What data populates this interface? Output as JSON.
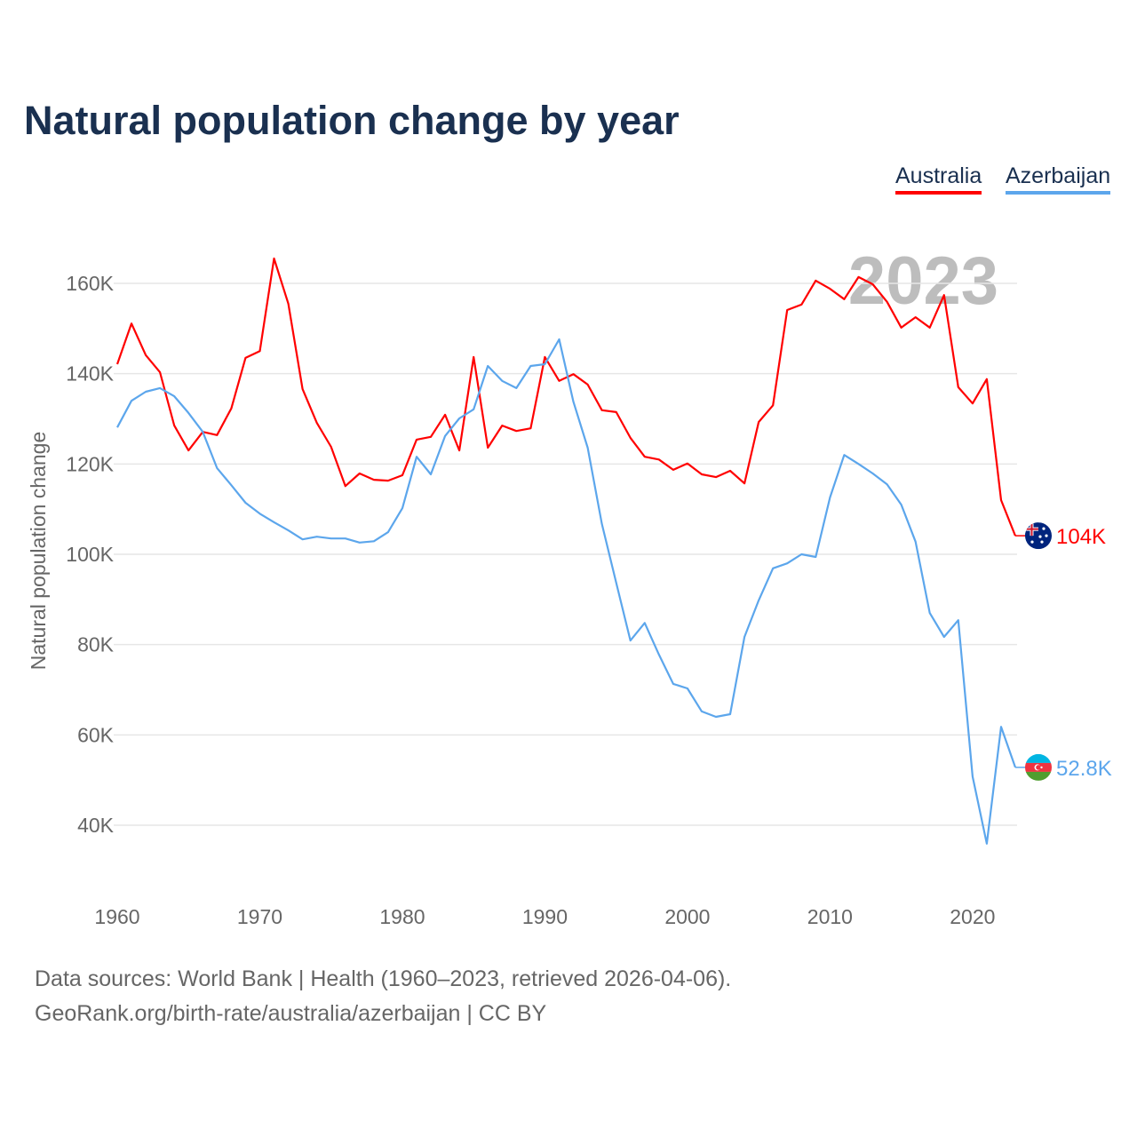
{
  "title": "Natural population change by year",
  "legend": [
    {
      "label": "Australia",
      "color": "#ff0000"
    },
    {
      "label": "Azerbaijan",
      "color": "#5ca6ec"
    }
  ],
  "footer": {
    "line1": "Data sources: World Bank | Health (1960–2023, retrieved 2026-04-06).",
    "line2": "GeoRank.org/birth-rate/australia/azerbaijan | CC BY"
  },
  "chart_data": {
    "type": "line",
    "title": "Natural population change by year",
    "xlabel": "",
    "ylabel": "Natural population change",
    "year_watermark": "2023",
    "x": [
      1960,
      1961,
      1962,
      1963,
      1964,
      1965,
      1966,
      1967,
      1968,
      1969,
      1970,
      1971,
      1972,
      1973,
      1974,
      1975,
      1976,
      1977,
      1978,
      1979,
      1980,
      1981,
      1982,
      1983,
      1984,
      1985,
      1986,
      1987,
      1988,
      1989,
      1990,
      1991,
      1992,
      1993,
      1994,
      1995,
      1996,
      1997,
      1998,
      1999,
      2000,
      2001,
      2002,
      2003,
      2004,
      2005,
      2006,
      2007,
      2008,
      2009,
      2010,
      2011,
      2012,
      2013,
      2014,
      2015,
      2016,
      2017,
      2018,
      2019,
      2020,
      2021,
      2022,
      2023
    ],
    "xlim": [
      1960,
      2023
    ],
    "ylim": [
      27000,
      170000
    ],
    "xticks": [
      1960,
      1970,
      1980,
      1990,
      2000,
      2010,
      2020
    ],
    "yticks": [
      40000,
      60000,
      80000,
      100000,
      120000,
      140000,
      160000
    ],
    "ytick_labels": [
      "40K",
      "60K",
      "80K",
      "100K",
      "120K",
      "140K",
      "160K"
    ],
    "grid": true,
    "legend_position": "top-right",
    "series": [
      {
        "name": "Australia",
        "color": "#ff0000",
        "end_label": "104K",
        "values": [
          142100,
          151100,
          144100,
          140300,
          128500,
          123000,
          127100,
          126400,
          132300,
          143500,
          145000,
          165500,
          155500,
          136600,
          129100,
          123800,
          115100,
          117900,
          116500,
          116300,
          117500,
          125400,
          126000,
          130900,
          123000,
          143700,
          123600,
          128500,
          127300,
          127900,
          143700,
          138400,
          139900,
          137600,
          131900,
          131500,
          125800,
          121600,
          121000,
          118700,
          120100,
          117700,
          117100,
          118500,
          115700,
          129300,
          133000,
          154100,
          155300,
          160600,
          158800,
          156500,
          161400,
          159800,
          155900,
          150200,
          152500,
          150200,
          157400,
          137000,
          133400,
          138800,
          112000,
          104100
        ]
      },
      {
        "name": "Azerbaijan",
        "color": "#5ca6ec",
        "end_label": "52.8K",
        "values": [
          128100,
          134000,
          136000,
          136800,
          135000,
          131300,
          127100,
          119100,
          115300,
          111400,
          109000,
          107100,
          105300,
          103300,
          103900,
          103500,
          103500,
          102600,
          102900,
          104900,
          110200,
          121600,
          117700,
          126200,
          130100,
          132100,
          141700,
          138400,
          136800,
          141700,
          142100,
          147600,
          133800,
          123600,
          106700,
          93700,
          80900,
          84800,
          77800,
          71300,
          70300,
          65200,
          64000,
          64600,
          81700,
          89800,
          96900,
          98000,
          100000,
          99400,
          112600,
          122000,
          120000,
          117900,
          115500,
          111000,
          102800,
          87000,
          81700,
          85400,
          50800,
          35900,
          61800,
          52800
        ]
      }
    ]
  }
}
